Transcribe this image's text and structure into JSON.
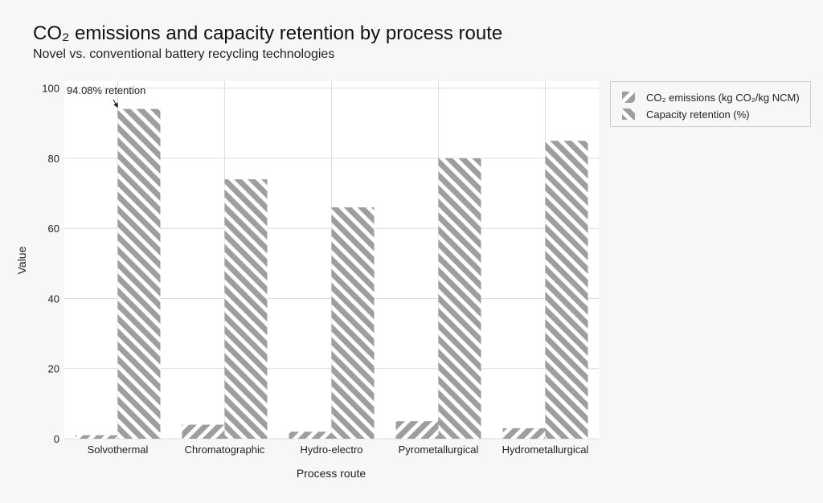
{
  "header": {
    "title": "CO₂ emissions and capacity retention by process route",
    "subtitle": "Novel vs. conventional battery recycling technologies"
  },
  "colors": {
    "bar_fill": "#9e9e9e",
    "bar_stripe_bg": "#ffffff",
    "grid": "#dedede",
    "background": "#f7f7f7"
  },
  "chart_data": {
    "type": "bar",
    "title": "CO₂ emissions and capacity retention by process route",
    "subtitle": "Novel vs. conventional battery recycling technologies",
    "xlabel": "Process route",
    "ylabel": "Value",
    "categories": [
      "Solvothermal",
      "Chromatographic",
      "Hydro-electro",
      "Pyrometallurgical",
      "Hydrometallurgical"
    ],
    "series": [
      {
        "name": "CO₂ emissions (kg CO₂/kg NCM)",
        "values": [
          1,
          4,
          2,
          5,
          3
        ],
        "hatch": "forward-diagonal"
      },
      {
        "name": "Capacity retention (%)",
        "values": [
          94.08,
          74,
          66,
          80,
          85
        ],
        "hatch": "back-diagonal"
      }
    ],
    "ylim": [
      0,
      102
    ],
    "yticks": [
      0,
      20,
      40,
      60,
      80,
      100
    ],
    "grid": true,
    "legend_position": "outside-top-right",
    "annotations": [
      {
        "text": "94.08% retention",
        "category": "Solvothermal",
        "series": "Capacity retention (%)",
        "value": 94.08
      }
    ]
  }
}
